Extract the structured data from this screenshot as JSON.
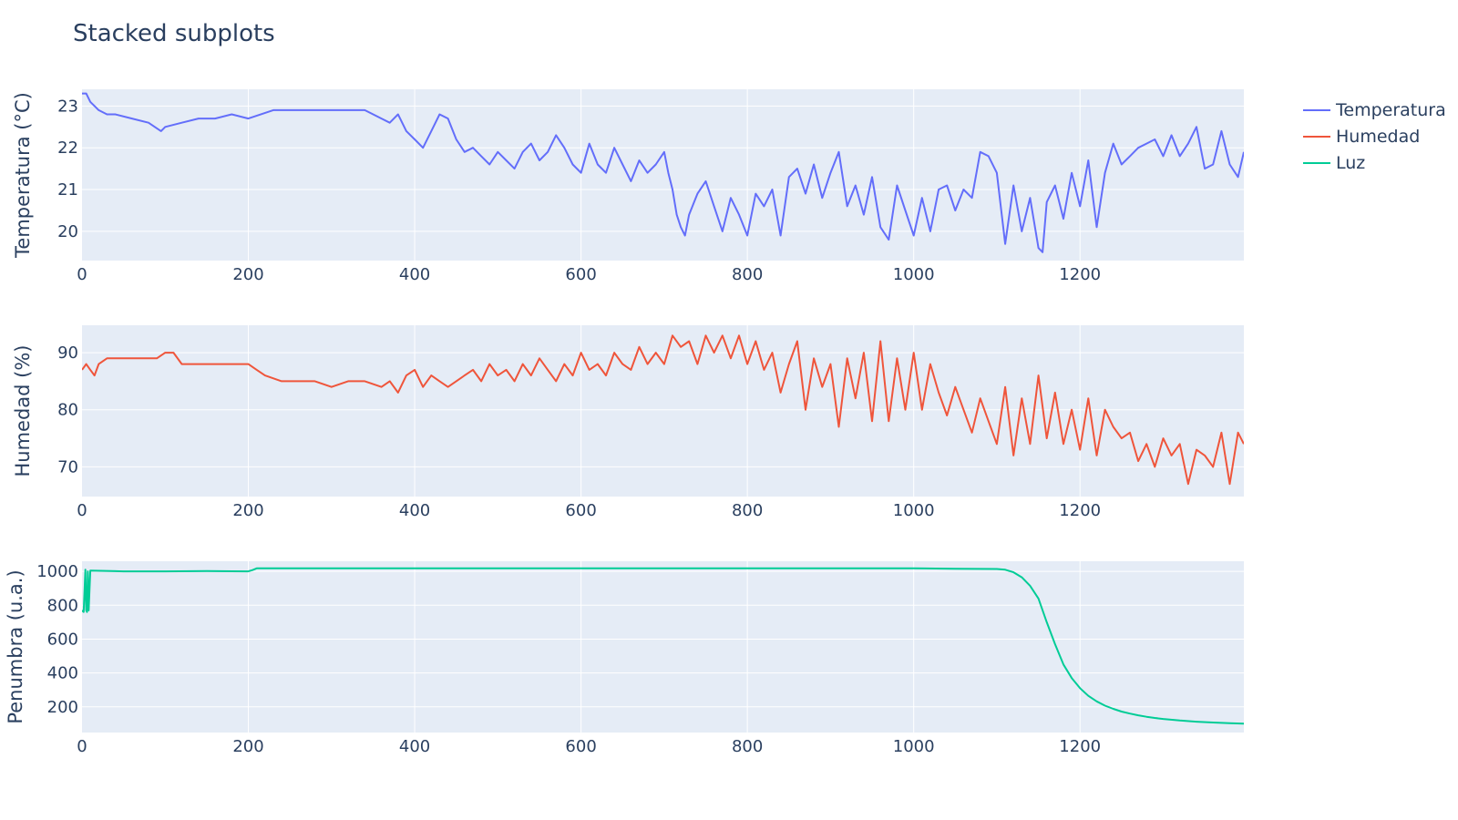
{
  "title": "Stacked subplots",
  "legend": {
    "placement": "top-right",
    "items": [
      {
        "label": "Temperatura",
        "color": "#636efa"
      },
      {
        "label": "Humedad",
        "color": "#ef553b"
      },
      {
        "label": "Luz",
        "color": "#00cc96"
      }
    ]
  },
  "chart_data": [
    {
      "type": "line",
      "ylabel": "Temperatura (°C)",
      "xlim": [
        0,
        1397
      ],
      "ylim": [
        19.3,
        23.4
      ],
      "xticks": [
        "0",
        "200",
        "400",
        "600",
        "800",
        "1000",
        "1200"
      ],
      "yticks": [
        "20",
        "21",
        "22",
        "23"
      ],
      "grid": true,
      "series": [
        {
          "name": "Temperatura",
          "color": "#636efa",
          "x": [
            0,
            5,
            10,
            15,
            20,
            30,
            40,
            60,
            80,
            95,
            100,
            120,
            140,
            160,
            180,
            200,
            230,
            260,
            290,
            320,
            340,
            360,
            370,
            380,
            390,
            400,
            410,
            420,
            430,
            440,
            450,
            460,
            470,
            480,
            490,
            500,
            510,
            520,
            530,
            540,
            550,
            560,
            570,
            580,
            590,
            600,
            610,
            620,
            630,
            640,
            650,
            660,
            670,
            680,
            690,
            700,
            705,
            710,
            715,
            720,
            725,
            730,
            740,
            750,
            760,
            770,
            780,
            790,
            800,
            810,
            820,
            830,
            840,
            850,
            860,
            870,
            880,
            890,
            900,
            910,
            920,
            930,
            940,
            950,
            960,
            970,
            980,
            990,
            1000,
            1010,
            1020,
            1030,
            1040,
            1050,
            1060,
            1070,
            1080,
            1090,
            1100,
            1110,
            1120,
            1130,
            1140,
            1150,
            1155,
            1160,
            1170,
            1180,
            1190,
            1200,
            1210,
            1220,
            1230,
            1240,
            1250,
            1260,
            1270,
            1280,
            1290,
            1300,
            1310,
            1320,
            1330,
            1340,
            1350,
            1360,
            1370,
            1380,
            1390,
            1397
          ],
          "y": [
            23.3,
            23.3,
            23.1,
            23.0,
            22.9,
            22.8,
            22.8,
            22.7,
            22.6,
            22.4,
            22.5,
            22.6,
            22.7,
            22.7,
            22.8,
            22.7,
            22.9,
            22.9,
            22.9,
            22.9,
            22.9,
            22.7,
            22.6,
            22.8,
            22.4,
            22.2,
            22.0,
            22.4,
            22.8,
            22.7,
            22.2,
            21.9,
            22.0,
            21.8,
            21.6,
            21.9,
            21.7,
            21.5,
            21.9,
            22.1,
            21.7,
            21.9,
            22.3,
            22.0,
            21.6,
            21.4,
            22.1,
            21.6,
            21.4,
            22.0,
            21.6,
            21.2,
            21.7,
            21.4,
            21.6,
            21.9,
            21.4,
            21.0,
            20.4,
            20.1,
            19.9,
            20.4,
            20.9,
            21.2,
            20.6,
            20.0,
            20.8,
            20.4,
            19.9,
            20.9,
            20.6,
            21.0,
            19.9,
            21.3,
            21.5,
            20.9,
            21.6,
            20.8,
            21.4,
            21.9,
            20.6,
            21.1,
            20.4,
            21.3,
            20.1,
            19.8,
            21.1,
            20.5,
            19.9,
            20.8,
            20.0,
            21.0,
            21.1,
            20.5,
            21.0,
            20.8,
            21.9,
            21.8,
            21.4,
            19.7,
            21.1,
            20.0,
            20.8,
            19.6,
            19.5,
            20.7,
            21.1,
            20.3,
            21.4,
            20.6,
            21.7,
            20.1,
            21.4,
            22.1,
            21.6,
            21.8,
            22.0,
            22.1,
            22.2,
            21.8,
            22.3,
            21.8,
            22.1,
            22.5,
            21.5,
            21.6,
            22.4,
            21.6,
            21.3,
            21.9
          ]
        }
      ]
    },
    {
      "type": "line",
      "ylabel": "Humedad (%)",
      "xlim": [
        0,
        1397
      ],
      "ylim": [
        64.8,
        94.8
      ],
      "xticks": [
        "0",
        "200",
        "400",
        "600",
        "800",
        "1000",
        "1200"
      ],
      "yticks": [
        "70",
        "80",
        "90"
      ],
      "grid": true,
      "series": [
        {
          "name": "Humedad",
          "color": "#ef553b",
          "x": [
            0,
            5,
            10,
            15,
            20,
            30,
            60,
            90,
            100,
            110,
            120,
            140,
            160,
            180,
            200,
            210,
            220,
            240,
            260,
            280,
            300,
            320,
            340,
            360,
            370,
            380,
            390,
            400,
            410,
            420,
            430,
            440,
            450,
            460,
            470,
            480,
            490,
            500,
            510,
            520,
            530,
            540,
            550,
            560,
            570,
            580,
            590,
            600,
            610,
            620,
            630,
            640,
            650,
            660,
            670,
            680,
            690,
            700,
            710,
            720,
            730,
            740,
            750,
            760,
            770,
            780,
            790,
            800,
            810,
            820,
            830,
            840,
            850,
            860,
            870,
            880,
            890,
            900,
            910,
            920,
            930,
            940,
            950,
            960,
            970,
            980,
            990,
            1000,
            1010,
            1020,
            1030,
            1040,
            1050,
            1060,
            1070,
            1080,
            1090,
            1100,
            1110,
            1120,
            1130,
            1140,
            1150,
            1160,
            1170,
            1180,
            1190,
            1200,
            1210,
            1220,
            1230,
            1240,
            1250,
            1260,
            1270,
            1280,
            1290,
            1300,
            1310,
            1320,
            1330,
            1340,
            1350,
            1360,
            1370,
            1380,
            1390,
            1397
          ],
          "y": [
            87,
            88,
            87,
            86,
            88,
            89,
            89,
            89,
            90,
            90,
            88,
            88,
            88,
            88,
            88,
            87,
            86,
            85,
            85,
            85,
            84,
            85,
            85,
            84,
            85,
            83,
            86,
            87,
            84,
            86,
            85,
            84,
            85,
            86,
            87,
            85,
            88,
            86,
            87,
            85,
            88,
            86,
            89,
            87,
            85,
            88,
            86,
            90,
            87,
            88,
            86,
            90,
            88,
            87,
            91,
            88,
            90,
            88,
            93,
            91,
            92,
            88,
            93,
            90,
            93,
            89,
            93,
            88,
            92,
            87,
            90,
            83,
            88,
            92,
            80,
            89,
            84,
            88,
            77,
            89,
            82,
            90,
            78,
            92,
            78,
            89,
            80,
            90,
            80,
            88,
            83,
            79,
            84,
            80,
            76,
            82,
            78,
            74,
            84,
            72,
            82,
            74,
            86,
            75,
            83,
            74,
            80,
            73,
            82,
            72,
            80,
            77,
            75,
            76,
            71,
            74,
            70,
            75,
            72,
            74,
            67,
            73,
            72,
            70,
            76,
            67,
            76,
            74
          ]
        }
      ]
    },
    {
      "type": "line",
      "ylabel": "Penumbra (u.a.)",
      "xlim": [
        0,
        1397
      ],
      "ylim": [
        48,
        1060
      ],
      "xticks": [
        "0",
        "200",
        "400",
        "600",
        "800",
        "1000",
        "1200"
      ],
      "yticks": [
        "200",
        "400",
        "600",
        "800",
        "1000"
      ],
      "grid": true,
      "series": [
        {
          "name": "Luz",
          "color": "#00cc96",
          "x": [
            0,
            2,
            4,
            5,
            6,
            7,
            8,
            10,
            50,
            100,
            150,
            200,
            205,
            210,
            300,
            400,
            500,
            600,
            700,
            800,
            900,
            1000,
            1050,
            1100,
            1110,
            1120,
            1130,
            1140,
            1150,
            1160,
            1170,
            1180,
            1190,
            1200,
            1210,
            1220,
            1230,
            1240,
            1250,
            1260,
            1270,
            1280,
            1290,
            1300,
            1320,
            1340,
            1360,
            1380,
            1397
          ],
          "y": [
            770,
            760,
            1010,
            770,
            760,
            1000,
            770,
            1005,
            1000,
            1000,
            1002,
            1000,
            1008,
            1018,
            1018,
            1018,
            1018,
            1018,
            1018,
            1018,
            1018,
            1018,
            1016,
            1014,
            1010,
            995,
            965,
            915,
            840,
            700,
            570,
            450,
            370,
            310,
            265,
            232,
            207,
            188,
            172,
            160,
            150,
            141,
            134,
            128,
            119,
            112,
            107,
            103,
            100
          ]
        }
      ]
    }
  ]
}
